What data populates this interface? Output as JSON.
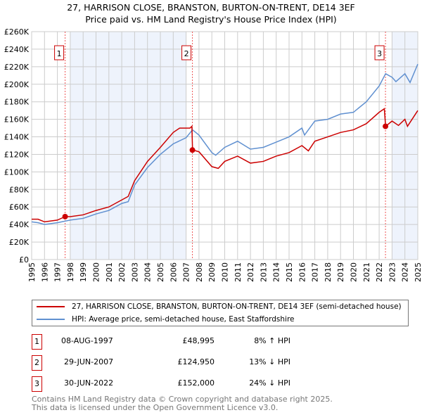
{
  "title": "27, HARRISON CLOSE, BRANSTON, BURTON-ON-TRENT, DE14 3EF",
  "subtitle": "Price paid vs. HM Land Registry's House Price Index (HPI)",
  "chart_data": {
    "type": "line",
    "xlim": [
      1995,
      2025
    ],
    "ylim": [
      0,
      260000
    ],
    "yticks": [
      0,
      20000,
      40000,
      60000,
      80000,
      100000,
      120000,
      140000,
      160000,
      180000,
      200000,
      220000,
      240000,
      260000
    ],
    "ytick_labels": [
      "£0",
      "£20K",
      "£40K",
      "£60K",
      "£80K",
      "£100K",
      "£120K",
      "£140K",
      "£160K",
      "£180K",
      "£200K",
      "£220K",
      "£240K",
      "£260K"
    ],
    "xticks": [
      "1995",
      "1996",
      "1997",
      "1998",
      "1999",
      "2000",
      "2001",
      "2002",
      "2003",
      "2004",
      "2005",
      "2006",
      "2007",
      "2008",
      "2009",
      "2010",
      "2011",
      "2012",
      "2013",
      "2014",
      "2015",
      "2016",
      "2017",
      "2018",
      "2019",
      "2020",
      "2021",
      "2022",
      "2023",
      "2024",
      "2025"
    ],
    "shaded_ranges": [
      [
        1998,
        2007
      ],
      [
        2023,
        2025
      ]
    ],
    "series": [
      {
        "name": "27, HARRISON CLOSE, BRANSTON, BURTON-ON-TRENT, DE14 3EF (semi-detached house)",
        "color": "#cc0000",
        "x": [
          1995,
          1995.5,
          1996,
          1997,
          1997.6,
          1998,
          1999,
          2000,
          2001,
          2002,
          2002.5,
          2003,
          2004,
          2005,
          2006,
          2006.5,
          2007.3,
          2007.45,
          2007.5,
          2008,
          2009,
          2009.5,
          2010,
          2011,
          2012,
          2013,
          2014,
          2015,
          2016,
          2016.5,
          2017,
          2018,
          2019,
          2020,
          2021,
          2022,
          2022.4,
          2022.5,
          2023,
          2023.5,
          2024,
          2024.2,
          2025
        ],
        "y": [
          46000,
          46000,
          43000,
          45000,
          49000,
          49000,
          51000,
          56000,
          60000,
          68000,
          72000,
          90000,
          112000,
          128000,
          145000,
          150000,
          150000,
          152000,
          125000,
          123000,
          106000,
          104000,
          112000,
          118000,
          110000,
          112000,
          118000,
          122000,
          130000,
          124000,
          135000,
          140000,
          145000,
          148000,
          155000,
          168000,
          172000,
          152000,
          158000,
          153000,
          160000,
          152000,
          170000
        ]
      },
      {
        "name": "HPI: Average price, semi-detached house, East Staffordshire",
        "color": "#6090d0",
        "x": [
          1995,
          1995.5,
          1996,
          1997,
          1998,
          1999,
          2000,
          2001,
          2002,
          2002.5,
          2003,
          2004,
          2005,
          2006,
          2007,
          2007.5,
          2008,
          2009,
          2009.3,
          2010,
          2011,
          2012,
          2013,
          2014,
          2015,
          2016,
          2016.2,
          2017,
          2018,
          2019,
          2020,
          2021,
          2022,
          2022.5,
          2023,
          2023.3,
          2024,
          2024.4,
          2025
        ],
        "y": [
          43000,
          42000,
          40000,
          42000,
          45000,
          47000,
          52000,
          56000,
          64000,
          66000,
          85000,
          105000,
          120000,
          132000,
          139000,
          148000,
          142000,
          122000,
          119000,
          128000,
          135000,
          126000,
          128000,
          134000,
          140000,
          150000,
          142000,
          158000,
          160000,
          166000,
          168000,
          180000,
          198000,
          212000,
          208000,
          203000,
          212000,
          202000,
          223000
        ]
      }
    ],
    "sales": [
      {
        "label": "1",
        "date": "08-AUG-1997",
        "x": 1997.6,
        "price": 48995,
        "price_text": "£48,995",
        "hpi": "8% ↑ HPI"
      },
      {
        "label": "2",
        "date": "29-JUN-2007",
        "x": 2007.49,
        "price": 124950,
        "price_text": "£124,950",
        "hpi": "13% ↓ HPI"
      },
      {
        "label": "3",
        "date": "30-JUN-2022",
        "x": 2022.49,
        "price": 152000,
        "price_text": "£152,000",
        "hpi": "24% ↓ HPI"
      }
    ]
  },
  "footer": {
    "line1": "Contains HM Land Registry data © Crown copyright and database right 2025.",
    "line2": "This data is licensed under the Open Government Licence v3.0."
  }
}
